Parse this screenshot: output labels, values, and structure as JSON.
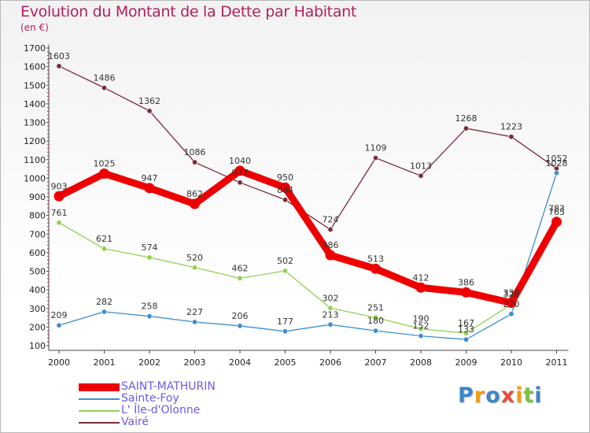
{
  "header": {
    "title": "Evolution du Montant de la Dette par Habitant",
    "subtitle": "(en €)"
  },
  "logo": {
    "text": "Proxiti",
    "colors": [
      "#3d86c6",
      "#f39c12",
      "#3d86c6",
      "#e74c3c",
      "#f39c12",
      "#7cc242",
      "#3d86c6"
    ]
  },
  "chart_data": {
    "type": "line",
    "title": "Evolution du Montant de la Dette par Habitant",
    "subtitle": "(en €)",
    "x": [
      "2000",
      "2001",
      "2002",
      "2003",
      "2004",
      "2005",
      "2006",
      "2007",
      "2008",
      "2009",
      "2010",
      "2011"
    ],
    "ylim": [
      100,
      1700
    ],
    "yticks": [
      100,
      200,
      300,
      400,
      500,
      600,
      700,
      800,
      900,
      1000,
      1100,
      1200,
      1300,
      1400,
      1500,
      1600,
      1700
    ],
    "grid": false,
    "legend_position": "bottom-left",
    "series": [
      {
        "name": "Vairé",
        "color": "#7b2a3a",
        "values": [
          1603,
          1486,
          1362,
          1086,
          977,
          884,
          724,
          1109,
          1013,
          1268,
          1223,
          1052
        ],
        "labels": [
          "1603",
          "1486",
          "1362",
          "1086",
          "977",
          "884",
          "724",
          "1109",
          "1013",
          "1268",
          "1223",
          "1052"
        ],
        "emphasis": false
      },
      {
        "name": "Sainte-Foy",
        "color": "#3d8ed0",
        "values": [
          209,
          282,
          258,
          227,
          206,
          177,
          213,
          180,
          152,
          133,
          270,
          1028
        ],
        "labels": [
          "209",
          "282",
          "258",
          "227",
          "206",
          "177",
          "213",
          "180",
          "152",
          "133",
          "270",
          "1028"
        ],
        "emphasis": false
      },
      {
        "name": "L' Île-d'Olonne",
        "color": "#92d050",
        "values": [
          761,
          621,
          574,
          520,
          462,
          502,
          302,
          251,
          190,
          167,
          322,
          783
        ],
        "labels": [
          "761",
          "621",
          "574",
          "520",
          "462",
          "502",
          "302",
          "251",
          "190",
          "167",
          "322",
          "783"
        ],
        "emphasis": false
      },
      {
        "name": "SAINT-MATHURIN",
        "color": "#ee0000",
        "values": [
          903,
          1025,
          947,
          862,
          1040,
          950,
          586,
          513,
          412,
          386,
          330,
          765
        ],
        "labels": [
          "903",
          "1025",
          "947",
          "862",
          "1040",
          "950",
          "586",
          "513",
          "412",
          "386",
          "330",
          "765"
        ],
        "emphasis": true
      }
    ],
    "legend_order": [
      "SAINT-MATHURIN",
      "Sainte-Foy",
      "L' Île-d'Olonne",
      "Vairé"
    ]
  }
}
